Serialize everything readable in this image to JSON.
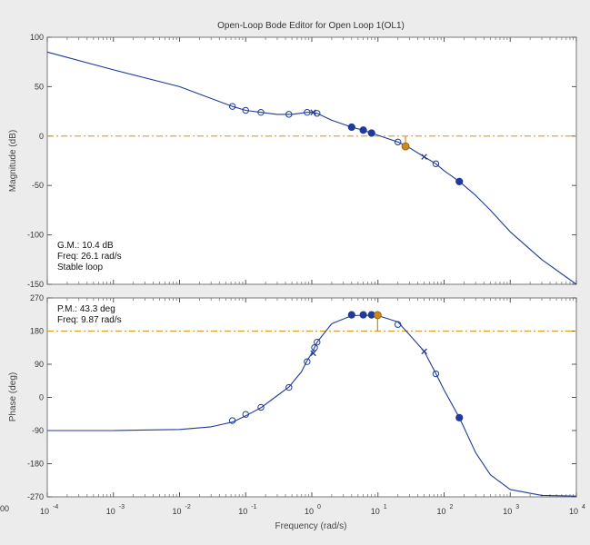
{
  "window": {
    "title": "Open-Loop Bode Editor for Open Loop 1(OL1)",
    "left_edge_text": "00"
  },
  "colors": {
    "background": "#ececec",
    "plot_bg": "#ffffff",
    "curve": "#1f3a9a",
    "marker": "#1f3a9a",
    "crossover_marker": "#c98a1a",
    "reference_line": "#d4a02a",
    "frame": "#777777"
  },
  "chart_data": [
    {
      "type": "line",
      "name": "magnitude",
      "ylabel": "Magnitude (dB)",
      "xlabel": "",
      "xscale": "log",
      "xlim": [
        0.0001,
        10000
      ],
      "ylim": [
        -150,
        100
      ],
      "xticks": [
        {
          "value": 0.0001,
          "base": "10",
          "exp": "-4"
        },
        {
          "value": 0.001,
          "base": "10",
          "exp": "-3"
        },
        {
          "value": 0.01,
          "base": "10",
          "exp": "-2"
        },
        {
          "value": 0.1,
          "base": "10",
          "exp": "-1"
        },
        {
          "value": 1,
          "base": "10",
          "exp": "0"
        },
        {
          "value": 10,
          "base": "10",
          "exp": "1"
        },
        {
          "value": 100,
          "base": "10",
          "exp": "2"
        },
        {
          "value": 1000,
          "base": "10",
          "exp": "3"
        },
        {
          "value": 10000,
          "base": "10",
          "exp": "4"
        }
      ],
      "yticks": [
        "100",
        "50",
        "0",
        "-50",
        "-100",
        "-150"
      ],
      "ytick_values": [
        100,
        50,
        0,
        -50,
        -100,
        -150
      ],
      "reference_line": 0,
      "curve": [
        [
          0.0001,
          85
        ],
        [
          0.001,
          67
        ],
        [
          0.01,
          50
        ],
        [
          0.063,
          30
        ],
        [
          0.1,
          26
        ],
        [
          0.17,
          24
        ],
        [
          0.3,
          22
        ],
        [
          0.5,
          22
        ],
        [
          0.85,
          24
        ],
        [
          1.0,
          24
        ],
        [
          1.2,
          23
        ],
        [
          2.0,
          16
        ],
        [
          4.0,
          9
        ],
        [
          6.0,
          6
        ],
        [
          8.0,
          3
        ],
        [
          12,
          -1
        ],
        [
          20,
          -6
        ],
        [
          27,
          -10
        ],
        [
          50,
          -21
        ],
        [
          75,
          -28
        ],
        [
          100,
          -35
        ],
        [
          170,
          -46
        ],
        [
          300,
          -60
        ],
        [
          500,
          -75
        ],
        [
          1000,
          -97
        ],
        [
          3000,
          -125
        ],
        [
          10000,
          -150
        ]
      ],
      "circle_markers": [
        [
          0.063,
          30
        ],
        [
          0.1,
          26
        ],
        [
          0.17,
          24
        ],
        [
          0.45,
          22
        ],
        [
          0.85,
          24
        ],
        [
          1.2,
          23
        ],
        [
          20,
          -6
        ],
        [
          75,
          -28
        ]
      ],
      "filled_markers": [
        [
          4,
          9
        ],
        [
          6,
          6
        ],
        [
          8,
          3
        ],
        [
          170,
          -46
        ]
      ],
      "x_markers": [
        [
          1.05,
          24
        ],
        [
          50,
          -21
        ]
      ],
      "crossover": {
        "x": 26.1,
        "y": -10.4
      },
      "info": [
        "G.M.: 10.4 dB",
        "Freq: 26.1 rad/s",
        "Stable loop"
      ]
    },
    {
      "type": "line",
      "name": "phase",
      "ylabel": "Phase (deg)",
      "xlabel": "Frequency (rad/s)",
      "xscale": "log",
      "xlim": [
        0.0001,
        10000
      ],
      "ylim": [
        -270,
        270
      ],
      "xticks": [
        {
          "value": 0.0001,
          "base": "10",
          "exp": "-4"
        },
        {
          "value": 0.001,
          "base": "10",
          "exp": "-3"
        },
        {
          "value": 0.01,
          "base": "10",
          "exp": "-2"
        },
        {
          "value": 0.1,
          "base": "10",
          "exp": "-1"
        },
        {
          "value": 1,
          "base": "10",
          "exp": "0"
        },
        {
          "value": 10,
          "base": "10",
          "exp": "1"
        },
        {
          "value": 100,
          "base": "10",
          "exp": "2"
        },
        {
          "value": 1000,
          "base": "10",
          "exp": "3"
        },
        {
          "value": 10000,
          "base": "10",
          "exp": "4"
        }
      ],
      "yticks": [
        "270",
        "180",
        "90",
        "0",
        "-90",
        "-180",
        "-270"
      ],
      "ytick_values": [
        270,
        180,
        90,
        0,
        -90,
        -180,
        -270
      ],
      "reference_line": 180,
      "curve": [
        [
          0.0001,
          -90
        ],
        [
          0.001,
          -90
        ],
        [
          0.01,
          -87
        ],
        [
          0.03,
          -80
        ],
        [
          0.063,
          -67
        ],
        [
          0.1,
          -50
        ],
        [
          0.17,
          -28
        ],
        [
          0.3,
          5
        ],
        [
          0.45,
          28
        ],
        [
          0.7,
          70
        ],
        [
          0.85,
          100
        ],
        [
          1.0,
          120
        ],
        [
          1.2,
          150
        ],
        [
          2.0,
          200
        ],
        [
          4.0,
          222
        ],
        [
          6.0,
          223
        ],
        [
          8.0,
          222
        ],
        [
          10,
          222
        ],
        [
          20,
          205
        ],
        [
          30,
          170
        ],
        [
          50,
          125
        ],
        [
          75,
          65
        ],
        [
          100,
          20
        ],
        [
          170,
          -55
        ],
        [
          300,
          -150
        ],
        [
          500,
          -210
        ],
        [
          1000,
          -250
        ],
        [
          3000,
          -266
        ],
        [
          10000,
          -268
        ]
      ],
      "circle_markers": [
        [
          0.063,
          -63
        ],
        [
          0.1,
          -46
        ],
        [
          0.17,
          -27
        ],
        [
          0.45,
          27
        ],
        [
          0.85,
          97
        ],
        [
          1.1,
          135
        ],
        [
          1.2,
          150
        ],
        [
          20,
          198
        ],
        [
          75,
          64
        ]
      ],
      "filled_markers": [
        [
          4,
          224
        ],
        [
          6,
          224
        ],
        [
          8,
          224
        ],
        [
          170,
          -55
        ]
      ],
      "x_markers": [
        [
          1.05,
          120
        ],
        [
          50,
          125
        ]
      ],
      "crossover": {
        "x": 9.87,
        "y": 223.3
      },
      "info": [
        "P.M.: 43.3 deg",
        "Freq: 9.87 rad/s"
      ]
    }
  ]
}
